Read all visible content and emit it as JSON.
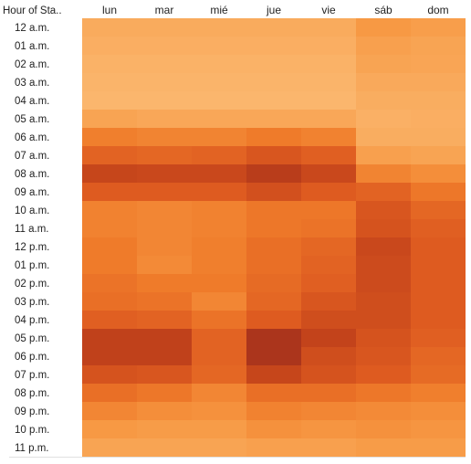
{
  "chart_data": {
    "type": "heatmap",
    "row_header": "Hour of Sta..",
    "columns": [
      "lun",
      "mar",
      "mié",
      "jue",
      "vie",
      "sáb",
      "dom"
    ],
    "rows": [
      "12 a.m.",
      "01 a.m.",
      "02 a.m.",
      "03 a.m.",
      "04 a.m.",
      "05 a.m.",
      "06 a.m.",
      "07 a.m.",
      "08 a.m.",
      "09 a.m.",
      "10 a.m.",
      "11 a.m.",
      "12 p.m.",
      "01 p.m.",
      "02 p.m.",
      "03 p.m.",
      "04 p.m.",
      "05 p.m.",
      "06 p.m.",
      "07 p.m.",
      "08 p.m.",
      "09 p.m.",
      "10 p.m.",
      "11 p.m."
    ],
    "values": [
      [
        0.24,
        0.24,
        0.24,
        0.24,
        0.24,
        0.34,
        0.31
      ],
      [
        0.22,
        0.22,
        0.22,
        0.22,
        0.22,
        0.3,
        0.28
      ],
      [
        0.2,
        0.2,
        0.2,
        0.2,
        0.2,
        0.28,
        0.27
      ],
      [
        0.19,
        0.19,
        0.19,
        0.19,
        0.19,
        0.25,
        0.25
      ],
      [
        0.18,
        0.18,
        0.18,
        0.18,
        0.18,
        0.23,
        0.23
      ],
      [
        0.28,
        0.26,
        0.26,
        0.26,
        0.26,
        0.21,
        0.22
      ],
      [
        0.48,
        0.45,
        0.45,
        0.5,
        0.46,
        0.23,
        0.23
      ],
      [
        0.62,
        0.6,
        0.62,
        0.7,
        0.64,
        0.3,
        0.28
      ],
      [
        0.82,
        0.8,
        0.8,
        0.9,
        0.8,
        0.45,
        0.4
      ],
      [
        0.66,
        0.66,
        0.66,
        0.74,
        0.66,
        0.62,
        0.52
      ],
      [
        0.46,
        0.44,
        0.46,
        0.52,
        0.52,
        0.7,
        0.6
      ],
      [
        0.46,
        0.44,
        0.46,
        0.52,
        0.54,
        0.72,
        0.64
      ],
      [
        0.5,
        0.44,
        0.48,
        0.56,
        0.6,
        0.8,
        0.66
      ],
      [
        0.5,
        0.42,
        0.48,
        0.56,
        0.62,
        0.78,
        0.66
      ],
      [
        0.54,
        0.5,
        0.5,
        0.58,
        0.64,
        0.78,
        0.66
      ],
      [
        0.56,
        0.54,
        0.44,
        0.6,
        0.7,
        0.76,
        0.66
      ],
      [
        0.64,
        0.62,
        0.54,
        0.66,
        0.76,
        0.76,
        0.66
      ],
      [
        0.86,
        0.86,
        0.62,
        0.98,
        0.84,
        0.72,
        0.64
      ],
      [
        0.86,
        0.86,
        0.62,
        0.98,
        0.76,
        0.7,
        0.6
      ],
      [
        0.72,
        0.7,
        0.6,
        0.82,
        0.72,
        0.66,
        0.58
      ],
      [
        0.56,
        0.52,
        0.44,
        0.56,
        0.56,
        0.52,
        0.48
      ],
      [
        0.44,
        0.4,
        0.38,
        0.46,
        0.44,
        0.42,
        0.4
      ],
      [
        0.34,
        0.32,
        0.32,
        0.38,
        0.36,
        0.38,
        0.36
      ],
      [
        0.28,
        0.28,
        0.28,
        0.3,
        0.3,
        0.32,
        0.32
      ]
    ],
    "value_range": [
      0,
      1
    ],
    "color_scale": [
      "#fdd6a8",
      "#fbb870",
      "#f79a45",
      "#ef7b2a",
      "#dd5a20",
      "#c4441b",
      "#a8331c"
    ],
    "grid": false,
    "legend": "none"
  }
}
